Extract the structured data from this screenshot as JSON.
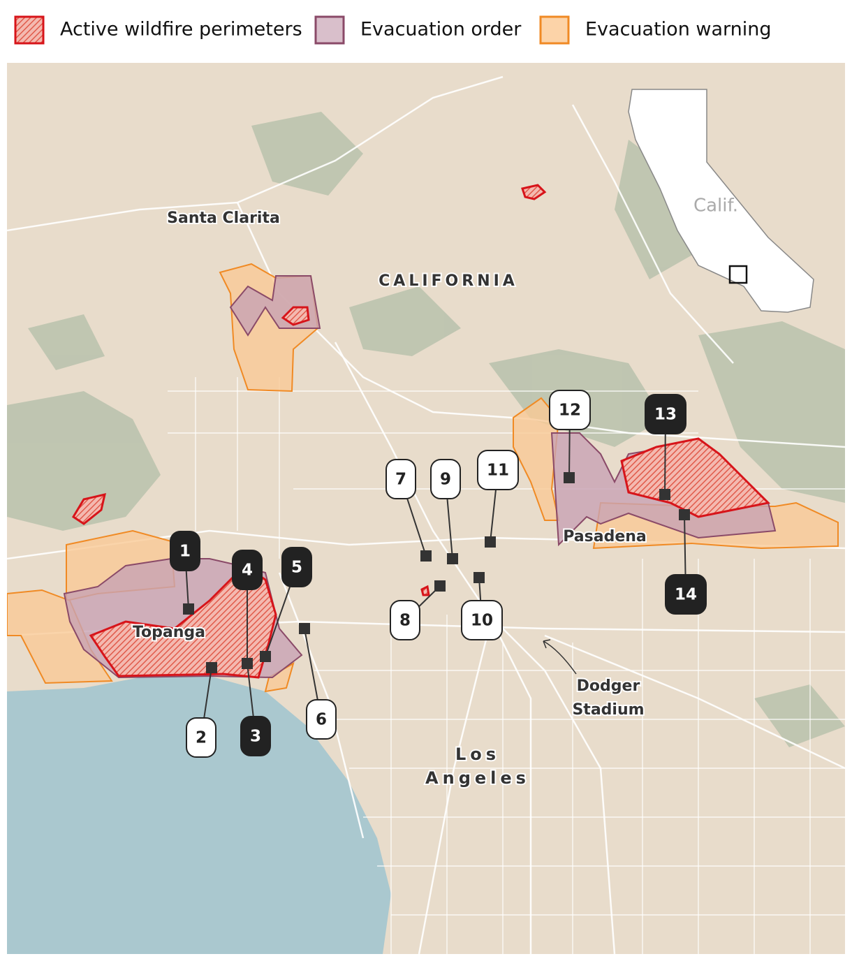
{
  "legend": {
    "items": [
      {
        "label": "Active wildfire perimeters",
        "kind": "fire"
      },
      {
        "label": "Evacuation order",
        "kind": "order"
      },
      {
        "label": "Evacuation warning",
        "kind": "warning"
      }
    ]
  },
  "places": [
    {
      "lines": [
        "Santa Clarita"
      ],
      "style": "place"
    },
    {
      "lines": [
        "CALIFORNIA"
      ],
      "style": "region"
    },
    {
      "lines": [
        "Topanga"
      ],
      "style": "place"
    },
    {
      "lines": [
        "Pasadena"
      ],
      "style": "place"
    },
    {
      "lines": [
        "Dodger",
        "Stadium"
      ],
      "style": "place"
    },
    {
      "lines": [
        "Los",
        "Angeles"
      ],
      "style": "city"
    }
  ],
  "inset": {
    "label": "Calif."
  },
  "markers": [
    {
      "label": "1",
      "style": "dark"
    },
    {
      "label": "2",
      "style": "light"
    },
    {
      "label": "3",
      "style": "dark"
    },
    {
      "label": "4",
      "style": "dark"
    },
    {
      "label": "5",
      "style": "dark"
    },
    {
      "label": "6",
      "style": "light"
    },
    {
      "label": "7",
      "style": "light"
    },
    {
      "label": "8",
      "style": "light"
    },
    {
      "label": "9",
      "style": "light"
    },
    {
      "label": "10",
      "style": "light"
    },
    {
      "label": "11",
      "style": "light"
    },
    {
      "label": "12",
      "style": "light"
    },
    {
      "label": "13",
      "style": "dark"
    },
    {
      "label": "14",
      "style": "dark"
    }
  ]
}
